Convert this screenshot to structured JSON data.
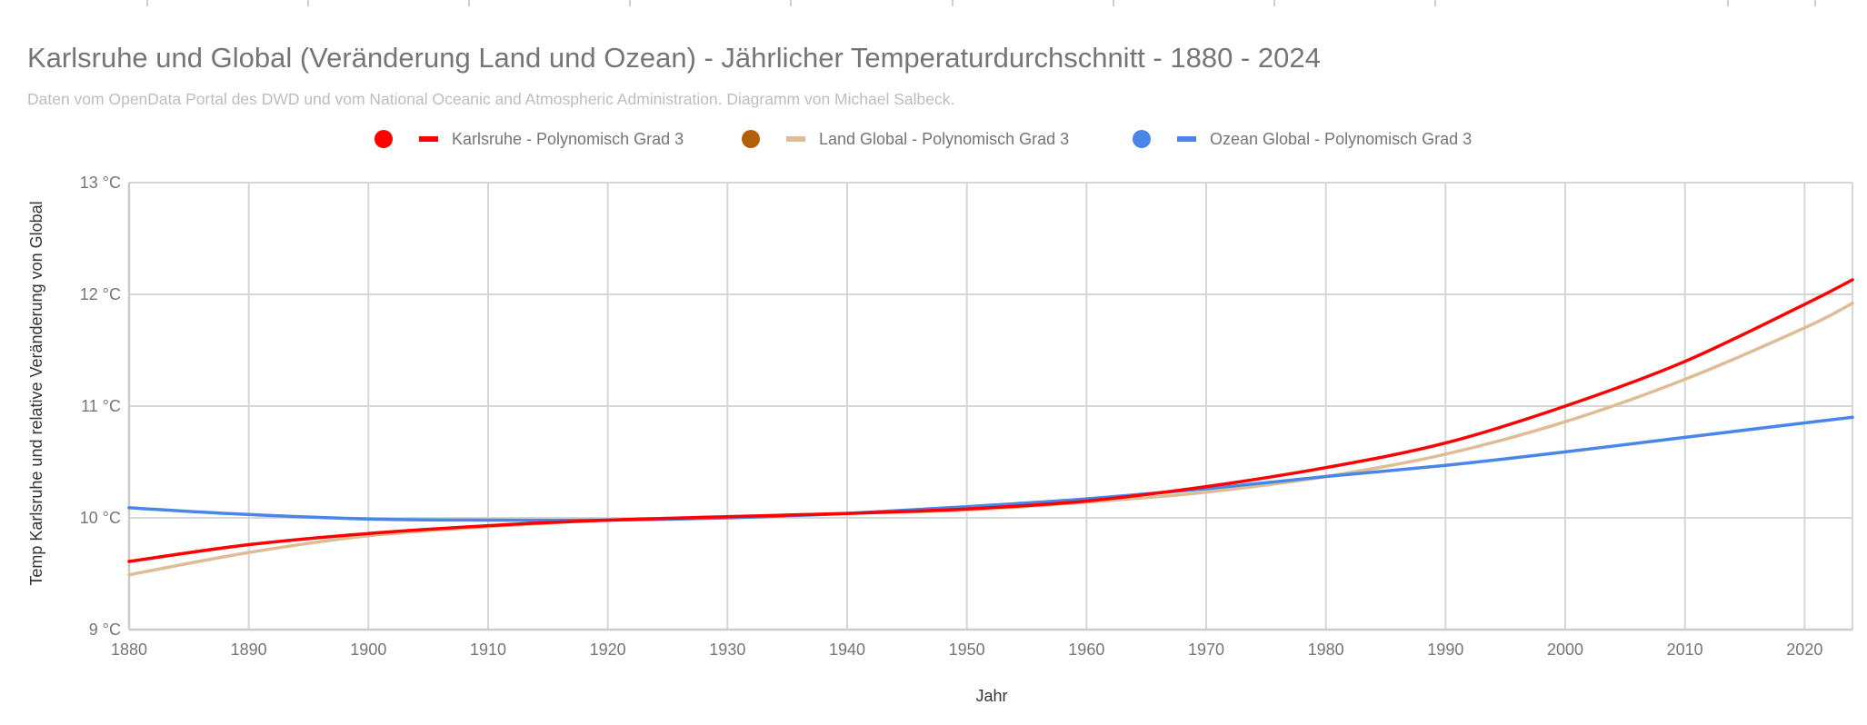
{
  "chart_data": {
    "type": "line",
    "title": "Karlsruhe und Global (Veränderung Land und Ozean) - Jährlicher Temperaturdurchschnitt - 1880 - 2024",
    "subtitle": "Daten vom OpenData Portal des DWD und vom National Oceanic and Atmospheric Administration. Diagramm von Michael Salbeck.",
    "xlabel": "Jahr",
    "ylabel": "Temp Karlsruhe und relative Veränderung von Global",
    "xlim": [
      1880,
      2024
    ],
    "ylim": [
      9,
      13
    ],
    "grid": true,
    "legend_position": "top",
    "x_ticks": [
      {
        "value": 1880,
        "label": "1880"
      },
      {
        "value": 1890,
        "label": "1890"
      },
      {
        "value": 1900,
        "label": "1900"
      },
      {
        "value": 1910,
        "label": "1910"
      },
      {
        "value": 1920,
        "label": "1920"
      },
      {
        "value": 1930,
        "label": "1930"
      },
      {
        "value": 1940,
        "label": "1940"
      },
      {
        "value": 1950,
        "label": "1950"
      },
      {
        "value": 1960,
        "label": "1960"
      },
      {
        "value": 1970,
        "label": "1970"
      },
      {
        "value": 1980,
        "label": "1980"
      },
      {
        "value": 1990,
        "label": "1990"
      },
      {
        "value": 2000,
        "label": "2000"
      },
      {
        "value": 2010,
        "label": "2010"
      },
      {
        "value": 2020,
        "label": "2020"
      }
    ],
    "y_ticks": [
      {
        "value": 13,
        "label": "13 °C"
      },
      {
        "value": 12,
        "label": "12 °C"
      },
      {
        "value": 11,
        "label": "11 °C"
      },
      {
        "value": 10,
        "label": "10 °C"
      },
      {
        "value": 9,
        "label": "9 °C"
      }
    ],
    "x": [
      1880,
      1890,
      1900,
      1910,
      1920,
      1930,
      1940,
      1950,
      1960,
      1970,
      1980,
      1990,
      2000,
      2010,
      2020,
      2024
    ],
    "series": [
      {
        "name": "Karlsruhe - Polynomisch Grad 3",
        "color": "#ff0000",
        "marker_color": "#ff0000",
        "values": [
          9.61,
          9.76,
          9.86,
          9.93,
          9.98,
          10.01,
          10.04,
          10.08,
          10.15,
          10.28,
          10.45,
          10.67,
          11.0,
          11.4,
          11.91,
          12.13
        ]
      },
      {
        "name": "Land Global - Polynomisch Grad 3",
        "color": "#e0bc96",
        "marker_color": "#b45f06",
        "values": [
          9.49,
          9.69,
          9.84,
          9.92,
          9.98,
          10.01,
          10.04,
          10.07,
          10.14,
          10.23,
          10.37,
          10.57,
          10.86,
          11.24,
          11.7,
          11.92
        ]
      },
      {
        "name": "Ozean Global - Polynomisch Grad 3",
        "color": "#4a86e8",
        "marker_color": "#4a86e8",
        "values": [
          10.09,
          10.03,
          9.99,
          9.98,
          9.98,
          10.0,
          10.04,
          10.1,
          10.17,
          10.26,
          10.37,
          10.47,
          10.59,
          10.72,
          10.85,
          10.9
        ]
      }
    ]
  }
}
